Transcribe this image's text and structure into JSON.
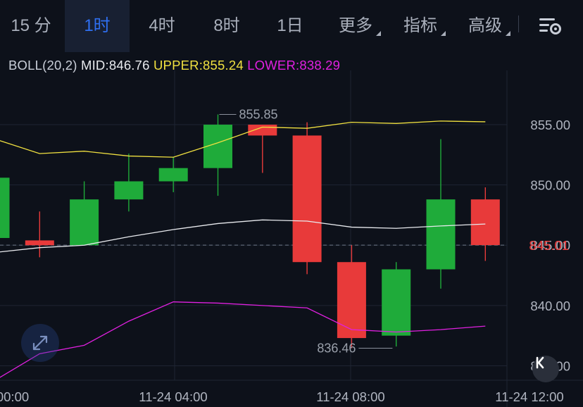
{
  "tabs": [
    {
      "label": "15 分",
      "active": false
    },
    {
      "label": "1时",
      "active": true
    },
    {
      "label": "4时",
      "active": false
    },
    {
      "label": "8时",
      "active": false
    },
    {
      "label": "1日",
      "active": false
    },
    {
      "label": "更多",
      "active": false,
      "dropdown": true
    },
    {
      "label": "指标",
      "active": false,
      "dropdown": true
    },
    {
      "label": "高级",
      "active": false,
      "dropdown": true
    }
  ],
  "settings_icon": "chart-settings-icon",
  "indicator": {
    "name": "BOLL(20,2)",
    "mid_label": "MID:846.76",
    "upper_label": "UPPER:855.24",
    "lower_label": "LOWER:838.29",
    "colors": {
      "mid": "#e8eaee",
      "upper": "#f0e040",
      "lower": "#e020e0"
    }
  },
  "colors": {
    "up": "#1fab3a",
    "down": "#e83a3a",
    "price_tag": "#e83a3a",
    "grid": "#1f2533"
  },
  "chart_data": {
    "type": "candlestick",
    "x_ticks": [
      "00:00",
      "11-24 04:00",
      "11-24 08:00",
      "11-24 12:00"
    ],
    "y_ticks": [
      "855.00",
      "850.00",
      "845.00",
      "840.00",
      "835.00"
    ],
    "ylim": [
      833.8,
      859.5
    ],
    "current_price": "845.01",
    "high_annotation": "855.85",
    "low_annotation": "836.46",
    "candles": [
      {
        "o": 845.6,
        "h": 850.6,
        "l": 845.6,
        "c": 850.6
      },
      {
        "o": 845.4,
        "h": 847.8,
        "l": 844.0,
        "c": 845.0
      },
      {
        "o": 845.0,
        "h": 850.3,
        "l": 845.0,
        "c": 848.8
      },
      {
        "o": 848.8,
        "h": 852.6,
        "l": 847.8,
        "c": 850.3
      },
      {
        "o": 850.3,
        "h": 852.3,
        "l": 849.4,
        "c": 851.4
      },
      {
        "o": 851.4,
        "h": 855.85,
        "l": 849.1,
        "c": 855.0
      },
      {
        "o": 855.0,
        "h": 855.0,
        "l": 851.0,
        "c": 854.1
      },
      {
        "o": 854.1,
        "h": 855.2,
        "l": 842.6,
        "c": 843.6
      },
      {
        "o": 843.6,
        "h": 845.0,
        "l": 836.46,
        "c": 837.3
      },
      {
        "o": 837.5,
        "h": 843.6,
        "l": 836.6,
        "c": 843.0
      },
      {
        "o": 843.0,
        "h": 853.8,
        "l": 841.4,
        "c": 848.8
      },
      {
        "o": 848.8,
        "h": 849.8,
        "l": 843.7,
        "c": 845.01
      }
    ],
    "series": [
      {
        "name": "UPPER",
        "values": [
          853.8,
          852.6,
          852.8,
          852.4,
          852.3,
          853.5,
          854.8,
          854.7,
          855.2,
          855.1,
          855.3,
          855.24
        ]
      },
      {
        "name": "MID",
        "values": [
          844.4,
          844.8,
          845.0,
          845.7,
          846.3,
          846.8,
          847.1,
          847.0,
          846.5,
          846.4,
          846.6,
          846.76
        ]
      },
      {
        "name": "LOWER",
        "values": [
          833.8,
          836.0,
          836.7,
          838.7,
          840.3,
          840.2,
          840.0,
          839.8,
          838.0,
          837.8,
          838.0,
          838.29
        ]
      }
    ]
  }
}
